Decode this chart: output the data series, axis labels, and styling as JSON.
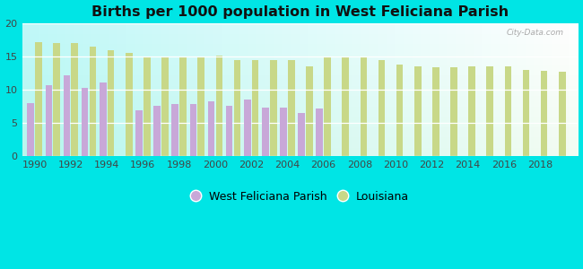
{
  "title": "Births per 1000 population in West Feliciana Parish",
  "background_color": "#00e5e5",
  "years": [
    1990,
    1991,
    1992,
    1993,
    1994,
    1995,
    1996,
    1997,
    1998,
    1999,
    2000,
    2001,
    2002,
    2003,
    2004,
    2005,
    2006,
    2007,
    2008,
    2009,
    2010,
    2011,
    2012,
    2013,
    2014,
    2015,
    2016,
    2017,
    2018,
    2019
  ],
  "west_feliciana": [
    8.0,
    10.7,
    12.2,
    10.2,
    11.1,
    null,
    6.8,
    7.5,
    7.8,
    7.8,
    8.2,
    7.5,
    8.5,
    7.2,
    7.2,
    6.5,
    7.1,
    null,
    null,
    null,
    null,
    null,
    null,
    null,
    null,
    null,
    null,
    null,
    null,
    null
  ],
  "louisiana": [
    17.1,
    17.0,
    17.0,
    16.5,
    15.9,
    15.5,
    15.0,
    14.9,
    15.0,
    15.0,
    15.1,
    14.5,
    14.4,
    14.4,
    14.4,
    13.5,
    14.9,
    15.0,
    14.8,
    14.4,
    13.8,
    13.5,
    13.4,
    13.4,
    13.5,
    13.5,
    13.5,
    13.0,
    12.8,
    12.7
  ],
  "bar_color_wf": "#c8a8d8",
  "bar_color_la": "#c8d888",
  "xticks": [
    1990,
    1992,
    1994,
    1996,
    1998,
    2000,
    2002,
    2004,
    2006,
    2008,
    2010,
    2012,
    2014,
    2016,
    2018
  ],
  "yticks": [
    0,
    5,
    10,
    15,
    20
  ],
  "ylim": [
    0,
    20
  ],
  "legend_wf": "West Feliciana Parish",
  "legend_la": "Louisiana",
  "watermark": "City-Data.com"
}
